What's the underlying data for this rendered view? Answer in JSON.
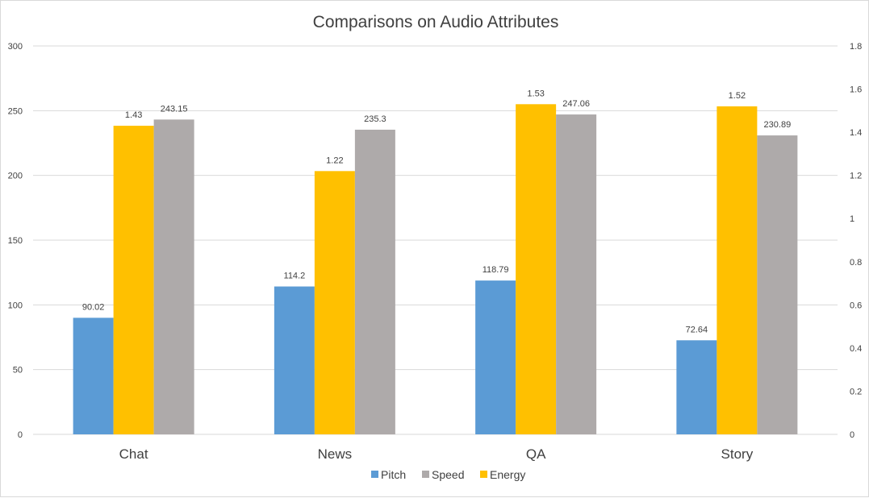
{
  "chart_data": {
    "type": "bar",
    "title": "Comparisons on Audio Attributes",
    "categories": [
      "Chat",
      "News",
      "QA",
      "Story"
    ],
    "series": [
      {
        "name": "Pitch",
        "axis": "left",
        "color": "#5b9bd5",
        "values": [
          90.02,
          114.2,
          118.79,
          72.64
        ],
        "labels": [
          "90.02",
          "114.2",
          "118.79",
          "72.64"
        ]
      },
      {
        "name": "Energy",
        "axis": "right",
        "color": "#ffc000",
        "values": [
          1.43,
          1.22,
          1.53,
          1.52
        ],
        "labels": [
          "1.43",
          "1.22",
          "1.53",
          "1.52"
        ]
      },
      {
        "name": "Speed",
        "axis": "left",
        "color": "#aeaaaa",
        "values": [
          243.15,
          235.3,
          247.06,
          230.89
        ],
        "labels": [
          "243.15",
          "235.3",
          "247.06",
          "230.89"
        ]
      }
    ],
    "legend_order": [
      "Pitch",
      "Speed",
      "Energy"
    ],
    "legend_position": "bottom",
    "y_left": {
      "min": 0,
      "max": 300,
      "ticks": [
        "0",
        "50",
        "100",
        "150",
        "200",
        "250",
        "300"
      ]
    },
    "y_right": {
      "min": 0,
      "max": 1.8,
      "ticks": [
        "0",
        "0.2",
        "0.4",
        "0.6",
        "0.8",
        "1",
        "1.2",
        "1.4",
        "1.6",
        "1.8"
      ]
    },
    "grid": true
  }
}
